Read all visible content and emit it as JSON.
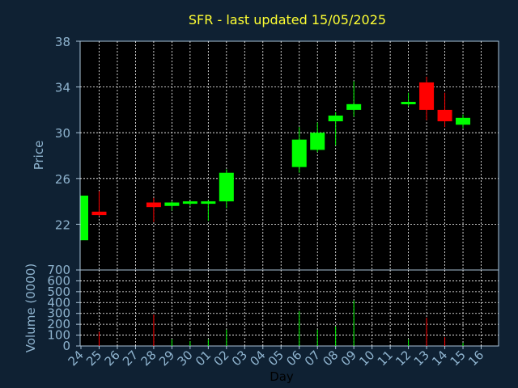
{
  "chart_data": {
    "type": "candlestick",
    "title": "SFR - last updated 15/05/2025",
    "xlabel": "Day",
    "price_ylabel": "Price",
    "volume_ylabel": "Volume (0000)",
    "categories": [
      "24",
      "25",
      "26",
      "27",
      "28",
      "29",
      "30",
      "01",
      "02",
      "03",
      "04",
      "05",
      "06",
      "07",
      "08",
      "09",
      "10",
      "11",
      "12",
      "13",
      "14",
      "15",
      "16"
    ],
    "price_ylim": [
      18,
      38
    ],
    "price_ticks": [
      22,
      26,
      30,
      34,
      38
    ],
    "volume_ylim": [
      0,
      700
    ],
    "volume_ticks": [
      0,
      100,
      200,
      300,
      400,
      500,
      600,
      700
    ],
    "grid": true,
    "colors": {
      "up": "#00ff00",
      "down": "#ff0000",
      "background": "#0f2133",
      "plot_background": "#000000",
      "grid": "#ffffff"
    },
    "candles": [
      {
        "day": "24",
        "open": 20.6,
        "high": 24.5,
        "low": 20.6,
        "close": 24.5,
        "volume": 0
      },
      {
        "day": "25",
        "open": 23.1,
        "high": 24.9,
        "low": 22.7,
        "close": 22.8,
        "volume": 130
      },
      {
        "day": "28",
        "open": 23.9,
        "high": 24.3,
        "low": 22.2,
        "close": 23.5,
        "volume": 290
      },
      {
        "day": "29",
        "open": 23.6,
        "high": 24.0,
        "low": 23.2,
        "close": 23.9,
        "volume": 60
      },
      {
        "day": "30",
        "open": 23.9,
        "high": 24.0,
        "low": 23.6,
        "close": 24.0,
        "volume": 45
      },
      {
        "day": "01",
        "open": 23.9,
        "high": 24.1,
        "low": 22.3,
        "close": 24.0,
        "volume": 60
      },
      {
        "day": "02",
        "open": 24.0,
        "high": 26.8,
        "low": 23.4,
        "close": 26.5,
        "volume": 150
      },
      {
        "day": "06",
        "open": 27.0,
        "high": 30.5,
        "low": 26.5,
        "close": 29.4,
        "volume": 320
      },
      {
        "day": "07",
        "open": 28.5,
        "high": 30.9,
        "low": 28.3,
        "close": 30.0,
        "volume": 150
      },
      {
        "day": "08",
        "open": 31.0,
        "high": 31.8,
        "low": 28.9,
        "close": 31.5,
        "volume": 180
      },
      {
        "day": "09",
        "open": 32.0,
        "high": 34.5,
        "low": 31.4,
        "close": 32.5,
        "volume": 420
      },
      {
        "day": "12",
        "open": 32.5,
        "high": 33.5,
        "low": 32.3,
        "close": 32.7,
        "volume": 60
      },
      {
        "day": "13",
        "open": 34.4,
        "high": 34.9,
        "low": 31.1,
        "close": 32.0,
        "volume": 260
      },
      {
        "day": "14",
        "open": 32.0,
        "high": 33.5,
        "low": 30.5,
        "close": 31.0,
        "volume": 80
      },
      {
        "day": "15",
        "open": 30.7,
        "high": 31.6,
        "low": 30.4,
        "close": 31.3,
        "volume": 30
      }
    ]
  }
}
